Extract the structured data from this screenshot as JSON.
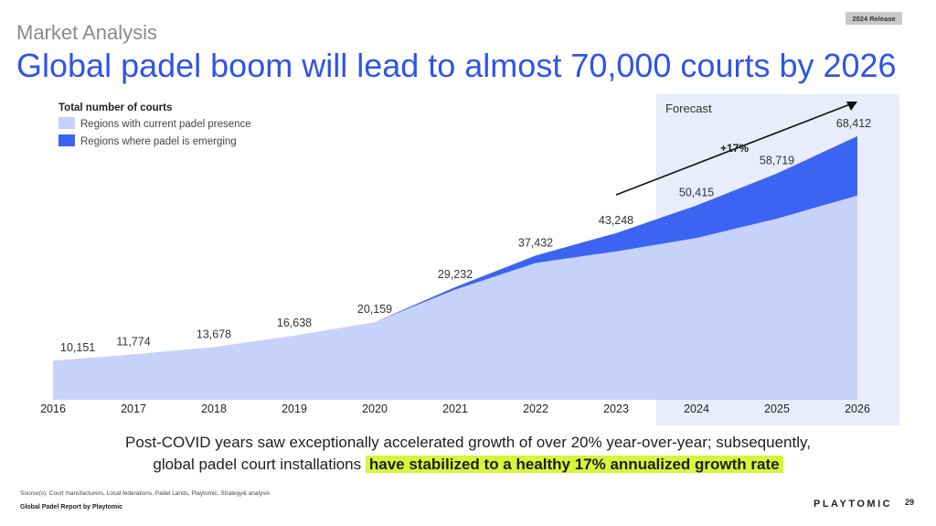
{
  "header": {
    "badge": "2024 Release",
    "subtitle": "Market Analysis",
    "title": "Global padel boom will lead to almost 70,000 courts by 2026"
  },
  "chart_data": {
    "type": "area",
    "legend_title": "Total number of courts",
    "legend_placement": "top-left",
    "grid": false,
    "x": [
      "2016",
      "2017",
      "2018",
      "2019",
      "2020",
      "2021",
      "2022",
      "2023",
      "2024",
      "2025",
      "2026"
    ],
    "totals": [
      10151,
      11774,
      13678,
      16638,
      20159,
      29232,
      37432,
      43248,
      50415,
      58719,
      68412
    ],
    "total_labels": [
      "10,151",
      "11,774",
      "13,678",
      "16,638",
      "20,159",
      "29,232",
      "37,432",
      "43,248",
      "50,415",
      "58,719",
      "68,412"
    ],
    "ylim": [
      0,
      80000
    ],
    "series": [
      {
        "name": "Regions with current padel presence",
        "color": "#c7d2fb",
        "values": [
          10151,
          11774,
          13678,
          16638,
          20159,
          28600,
          35500,
          38500,
          42000,
          47000,
          53000
        ]
      },
      {
        "name": "Regions where padel is emerging",
        "color": "#3c64f2",
        "values": [
          0,
          0,
          0,
          0,
          0,
          632,
          1932,
          4748,
          8415,
          11719,
          15412
        ]
      }
    ],
    "forecast": {
      "label": "Forecast",
      "from": "2024",
      "to": "2026",
      "color": "#e8ecfb"
    },
    "annotation": {
      "text": "+17%"
    }
  },
  "caption": {
    "line1": "Post-COVID years saw exceptionally accelerated growth of over 20% year-over-year; subsequently,",
    "line2_plain": "global padel court installations",
    "line2_highlight": "have stabilized to a healthy 17% annualized growth rate"
  },
  "footer": {
    "source": "Source(s): Court manufacturers, Local federations, Padel Lands, Playtomic, Strategy& analysis",
    "report": "Global Padel Report by Playtomic",
    "brand": "PLAYTOMIC",
    "page": "29"
  }
}
